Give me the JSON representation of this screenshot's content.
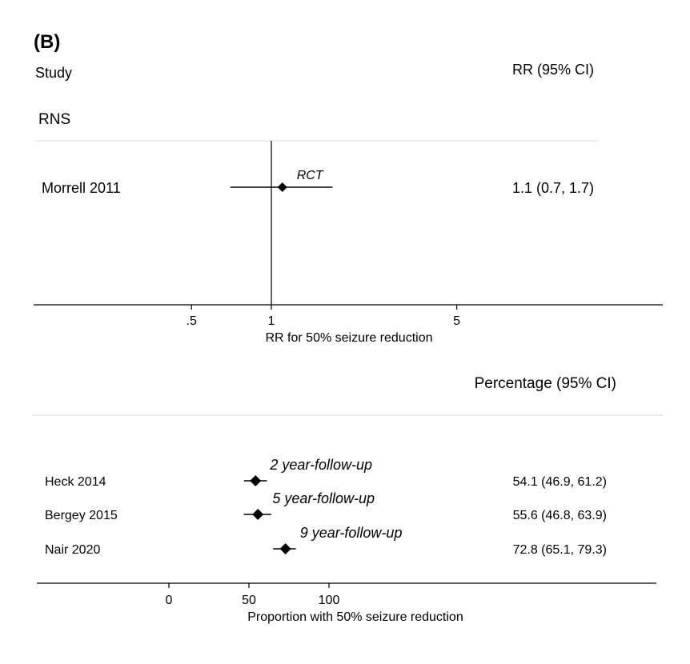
{
  "figure_label": "(B)",
  "chart_data": [
    {
      "type": "forest",
      "x_scale": "log",
      "column_headers": {
        "left": "Study",
        "right": "RR (95% CI)"
      },
      "group_label": "RNS",
      "xlabel": "RR for 50% seizure reduction",
      "x_ticks": [
        {
          "value": 0.5,
          "label": ".5"
        },
        {
          "value": 1,
          "label": "1"
        },
        {
          "value": 5,
          "label": "5"
        }
      ],
      "reference_line": 1,
      "studies": [
        {
          "name": "Morrell 2011",
          "estimate": 1.1,
          "lower": 0.7,
          "upper": 1.7,
          "label": "1.1 (0.7, 1.7)",
          "annotation": "RCT"
        }
      ]
    },
    {
      "type": "forest",
      "x_scale": "linear",
      "column_headers": {
        "right": "Percentage (95% CI)"
      },
      "xlabel": "Proportion with 50% seizure reduction",
      "x_ticks": [
        {
          "value": 0,
          "label": "0"
        },
        {
          "value": 50,
          "label": "50"
        },
        {
          "value": 100,
          "label": "100"
        }
      ],
      "studies": [
        {
          "name": "Heck 2014",
          "estimate": 54.1,
          "lower": 46.9,
          "upper": 61.2,
          "label": "54.1 (46.9, 61.2)",
          "annotation": "2 year-follow-up"
        },
        {
          "name": "Bergey 2015",
          "estimate": 55.6,
          "lower": 46.8,
          "upper": 63.9,
          "label": "55.6 (46.8, 63.9)",
          "annotation": "5 year-follow-up"
        },
        {
          "name": "Nair 2020",
          "estimate": 72.8,
          "lower": 65.1,
          "upper": 79.3,
          "label": "72.8 (65.1, 79.3)",
          "annotation": "9 year-follow-up"
        }
      ]
    }
  ]
}
